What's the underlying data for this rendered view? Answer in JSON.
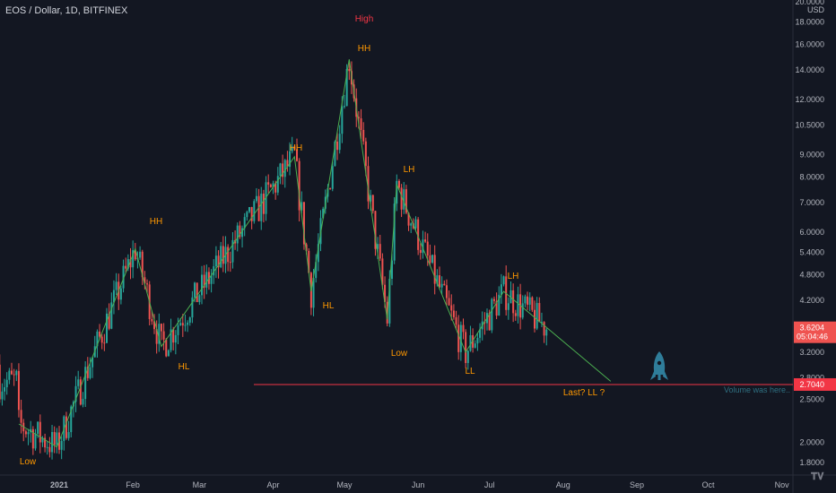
{
  "header": {
    "title": "EOS / Dollar, 1D, BITFINEX"
  },
  "price_axis": {
    "unit": "USD",
    "ticks": [
      "20.0000",
      "18.0000",
      "16.0000",
      "14.0000",
      "12.0000",
      "10.5000",
      "9.0000",
      "8.0000",
      "7.0000",
      "6.0000",
      "5.4000",
      "4.8000",
      "4.2000",
      "3.2000",
      "2.8000",
      "2.5000",
      "2.0000",
      "1.8000"
    ],
    "current_price": "3.6204",
    "countdown": "05:04:46",
    "level_price": "2.7040"
  },
  "time_axis": {
    "ticks": [
      "2021",
      "Feb",
      "Mar",
      "Apr",
      "May",
      "Jun",
      "Jul",
      "Aug",
      "Sep",
      "Oct",
      "Nov"
    ]
  },
  "annotations": {
    "low1": "Low",
    "hh1": "HH",
    "hl1": "HL",
    "hh2": "HH",
    "hl2": "HL",
    "high": "High",
    "hh3": "HH",
    "low2": "Low",
    "lh1": "LH",
    "ll": "LL",
    "lh2": "LH",
    "last_ll": "Last? LL ?",
    "volume_note": "Volume was here.."
  },
  "colors": {
    "up": "#26a69a",
    "down": "#ef5350",
    "wave": "#4caf50",
    "label": "#ff9800",
    "high_label": "#f23645",
    "level": "#f23645",
    "rocket": "#2f7d9a"
  },
  "icons": {
    "rocket": "rocket-icon",
    "logo": "tradingview-logo-icon"
  },
  "chart_data": {
    "type": "candlestick",
    "title": "EOS / Dollar, 1D, BITFINEX",
    "y_scale": "log",
    "y_range": [
      1.7,
      20
    ],
    "x_range": [
      "2020-12-25",
      "2021-11-05"
    ],
    "wave_points": [
      {
        "date": "2020-12-15",
        "price": 2.2
      },
      {
        "date": "2020-12-31",
        "price": 1.95,
        "label": "Low"
      },
      {
        "date": "2021-02-02",
        "price": 5.5,
        "label": "HH"
      },
      {
        "date": "2021-02-13",
        "price": 3.3,
        "label": "HL"
      },
      {
        "date": "2021-04-10",
        "price": 8.9,
        "label": "HH"
      },
      {
        "date": "2021-04-17",
        "price": 4.4,
        "label": "HL"
      },
      {
        "date": "2021-05-03",
        "price": 14.8,
        "label": "HH"
      },
      {
        "date": "2021-05-19",
        "price": 3.8,
        "label": "Low"
      },
      {
        "date": "2021-05-23",
        "price": 7.7,
        "label": "LH"
      },
      {
        "date": "2021-06-21",
        "price": 3.2,
        "label": "LL"
      },
      {
        "date": "2021-07-07",
        "price": 4.4,
        "label": "LH"
      },
      {
        "date": "2021-08-21",
        "price": 2.75,
        "label": "Last? LL ?"
      }
    ],
    "last_price": 3.6204,
    "horizontal_level": 2.704
  }
}
